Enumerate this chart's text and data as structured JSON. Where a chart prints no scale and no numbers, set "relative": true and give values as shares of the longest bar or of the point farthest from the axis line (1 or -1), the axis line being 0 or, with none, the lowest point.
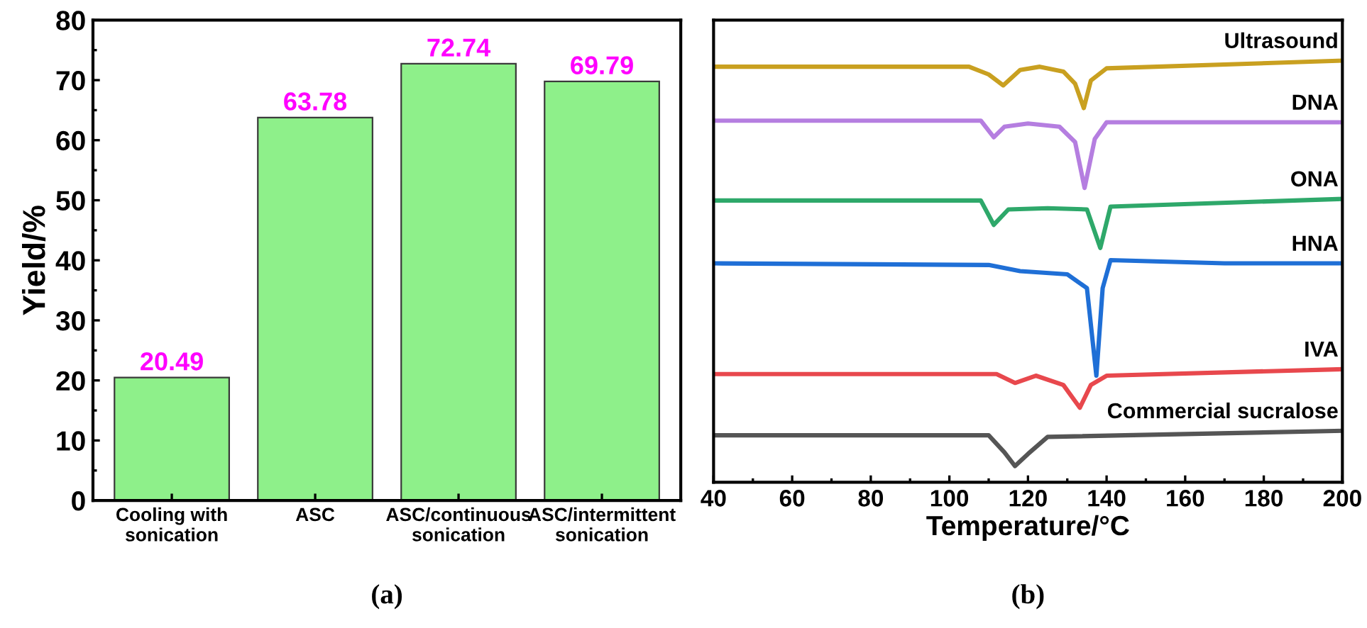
{
  "chart_data": [
    {
      "type": "bar",
      "ylabel": "Yield/%",
      "categories": [
        "Cooling with\nsonication",
        "ASC",
        "ASC/continuous\nsonication",
        "ASC/intermittent\nsonication"
      ],
      "values": [
        20.49,
        63.78,
        72.74,
        69.79
      ],
      "color": "#8ef08a",
      "data_labels": true,
      "ylim": [
        0,
        80
      ],
      "yticks": [
        0,
        10,
        20,
        30,
        40,
        50,
        60,
        70,
        80
      ],
      "grid": false,
      "legend": false,
      "annotations": [
        "(a)"
      ]
    },
    {
      "type": "line",
      "relative": true,
      "xlabel": "Temperature/°C",
      "xlim": [
        40,
        200
      ],
      "xticks": [
        40,
        60,
        80,
        100,
        120,
        140,
        160,
        180,
        200
      ],
      "grid": false,
      "legend": false,
      "marker": "none",
      "line_style": "solid",
      "annotations": [
        "(b)"
      ],
      "series": [
        {
          "name": "Ultrasound",
          "color": "#c9a020",
          "x": [
            40,
            105,
            110,
            113.7,
            118,
            123,
            129,
            132,
            134.2,
            136,
            140,
            200
          ],
          "values": [
            0.985,
            0.985,
            0.966,
            0.939,
            0.977,
            0.985,
            0.973,
            0.943,
            0.883,
            0.951,
            0.981,
            1.0
          ]
        },
        {
          "name": "DNA",
          "color": "#b57ee0",
          "x": [
            40,
            108,
            111.3,
            114,
            120,
            128,
            132,
            134.4,
            137,
            140,
            200
          ],
          "values": [
            0.852,
            0.852,
            0.811,
            0.837,
            0.845,
            0.837,
            0.799,
            0.686,
            0.807,
            0.848,
            0.848
          ]
        },
        {
          "name": "ONA",
          "color": "#2ea86a",
          "x": [
            40,
            108,
            111.3,
            115,
            125,
            135,
            138.4,
            141,
            200
          ],
          "values": [
            0.655,
            0.655,
            0.595,
            0.633,
            0.636,
            0.633,
            0.538,
            0.64,
            0.659
          ]
        },
        {
          "name": "HNA",
          "color": "#1f6fd6",
          "x": [
            40,
            110,
            118,
            130,
            135,
            137.4,
            139,
            141,
            170,
            200
          ],
          "values": [
            0.5,
            0.496,
            0.481,
            0.473,
            0.439,
            0.223,
            0.439,
            0.508,
            0.5,
            0.5
          ]
        },
        {
          "name": "IVA",
          "color": "#e8484d",
          "x": [
            40,
            112,
            116.7,
            122,
            129,
            133.2,
            136,
            140,
            200
          ],
          "values": [
            0.227,
            0.227,
            0.205,
            0.223,
            0.2,
            0.144,
            0.2,
            0.223,
            0.239
          ]
        },
        {
          "name": "Commercial sucralose",
          "color": "#555555",
          "x": [
            40,
            110,
            114,
            116.7,
            120,
            125,
            200
          ],
          "values": [
            0.076,
            0.076,
            0.034,
            0.0,
            0.03,
            0.072,
            0.087
          ]
        }
      ]
    }
  ]
}
